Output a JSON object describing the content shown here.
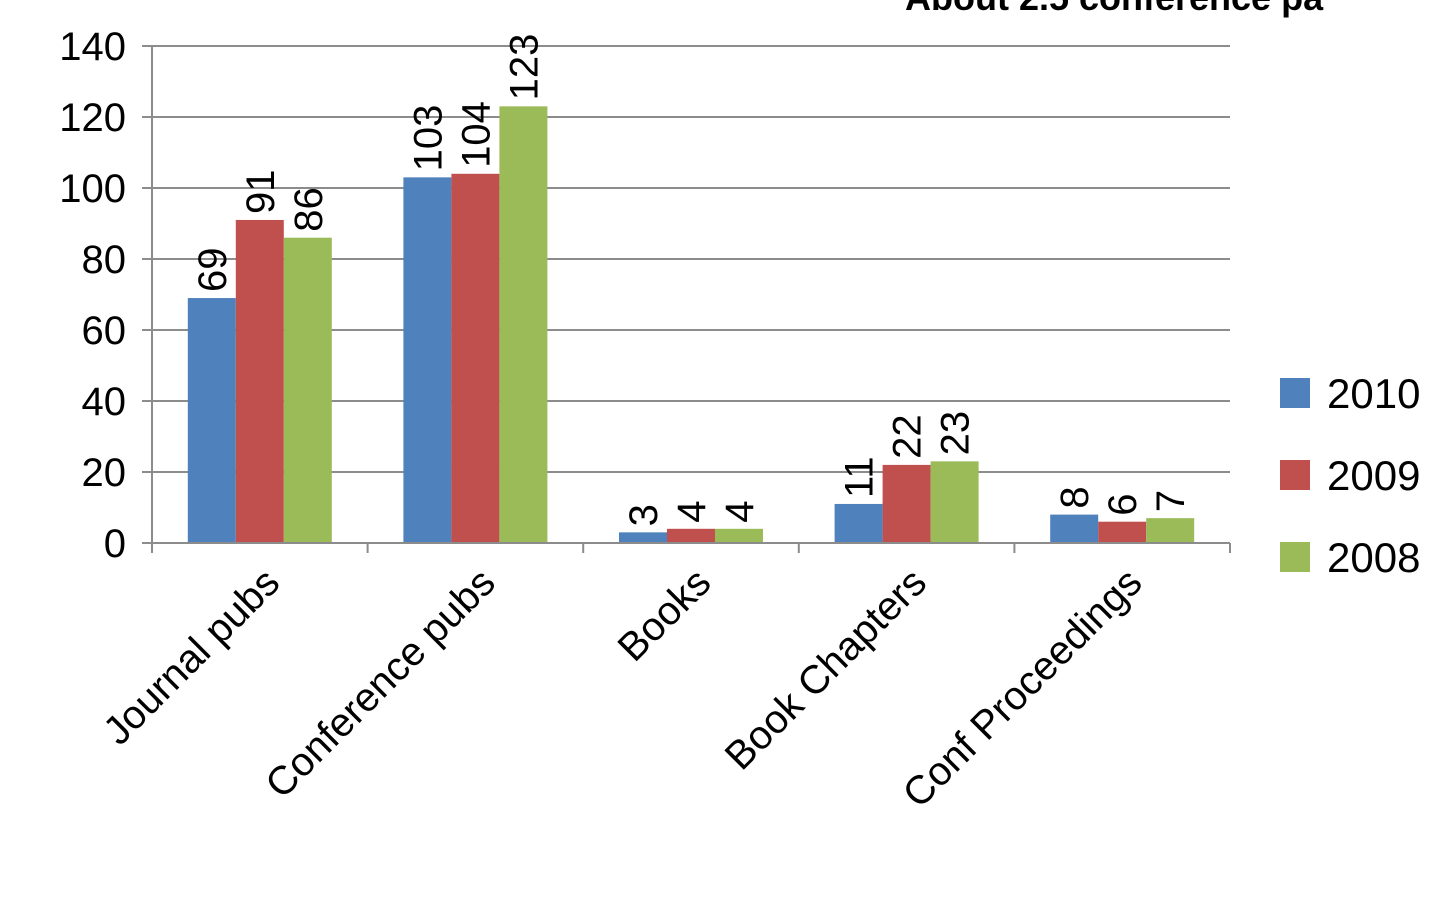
{
  "chart_data": {
    "type": "bar",
    "title": "About 2.5 conference pa",
    "xlabel": "",
    "ylabel": "",
    "categories": [
      "Journal pubs",
      "Conference pubs",
      "Books",
      "Book Chapters",
      "Conf Proceedings"
    ],
    "series": [
      {
        "name": "2010",
        "color": "#4f81bd",
        "values": [
          69,
          103,
          3,
          11,
          8
        ]
      },
      {
        "name": "2009",
        "color": "#c0504d",
        "values": [
          91,
          104,
          4,
          22,
          6
        ]
      },
      {
        "name": "2008",
        "color": "#9bbb59",
        "values": [
          86,
          123,
          4,
          23,
          7
        ]
      }
    ],
    "ylim": [
      0,
      140
    ],
    "yticks": [
      "0",
      "20",
      "40",
      "60",
      "80",
      "100",
      "120",
      "140"
    ],
    "grid": true,
    "legend_position": "right",
    "data_labels": true
  }
}
